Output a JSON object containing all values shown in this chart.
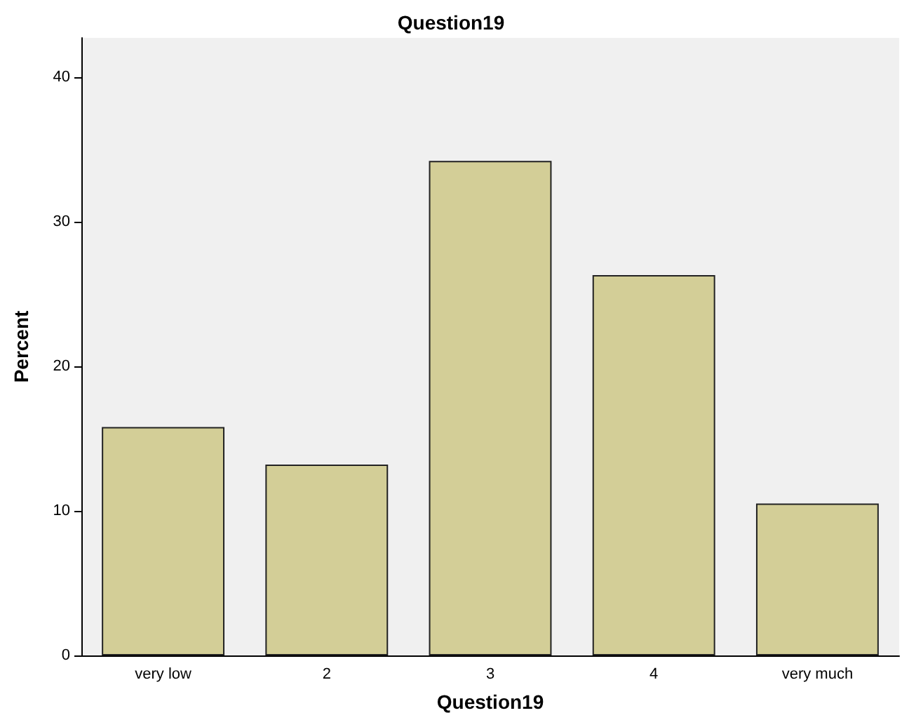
{
  "chart_data": {
    "type": "bar",
    "title": "Question19",
    "xlabel": "Question19",
    "ylabel": "Percent",
    "categories": [
      "very low",
      "2",
      "3",
      "4",
      "very much"
    ],
    "values": [
      15.8,
      13.2,
      34.2,
      26.3,
      10.5
    ],
    "color": "#d3ce97",
    "ylim": [
      0,
      42.7
    ],
    "yticks": [
      0,
      10,
      20,
      30,
      40
    ],
    "grid": false
  }
}
